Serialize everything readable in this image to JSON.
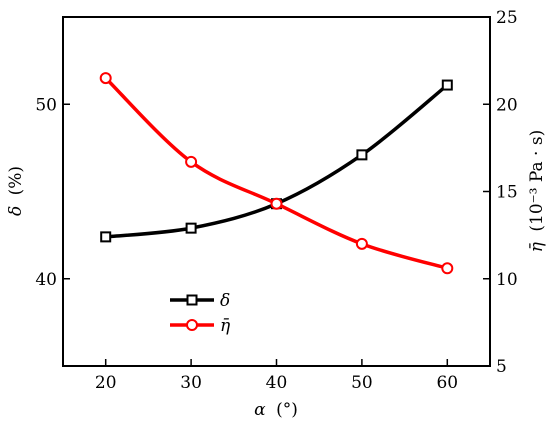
{
  "chart_data": {
    "type": "line",
    "x": [
      20,
      30,
      40,
      50,
      60
    ],
    "xlabel_var": "α",
    "xlabel_unit": "(°)",
    "xlim": [
      15,
      65
    ],
    "xticks": [
      "20",
      "30",
      "40",
      "50",
      "60"
    ],
    "left_axis": {
      "label_var": "δ",
      "label_unit": "(%)",
      "ylim": [
        35,
        55
      ],
      "ticks": [
        "40",
        "50"
      ]
    },
    "right_axis": {
      "label_var": "η̄",
      "label_unit": "(10⁻³ Pa · s)",
      "ylim": [
        5,
        25
      ],
      "ticks": [
        "5",
        "10",
        "15",
        "20",
        "25"
      ]
    },
    "series": [
      {
        "name": "δ",
        "axis": "left",
        "color": "#000000",
        "marker": "square",
        "values": [
          42.4,
          42.9,
          44.3,
          47.1,
          51.1
        ]
      },
      {
        "name": "η̄",
        "axis": "right",
        "color": "#ff0000",
        "marker": "circle",
        "values": [
          21.5,
          16.7,
          14.3,
          12.0,
          10.6
        ]
      }
    ],
    "legend_position": "bottom-left"
  }
}
